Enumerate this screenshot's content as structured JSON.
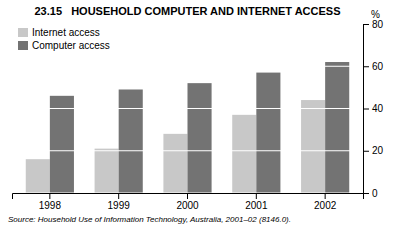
{
  "chart_data": {
    "type": "bar",
    "title": "23.15   HOUSEHOLD COMPUTER AND INTERNET ACCESS",
    "categories": [
      "1998",
      "1999",
      "2000",
      "2001",
      "2002"
    ],
    "series": [
      {
        "name": "Internet access",
        "color": "#c8c8c8",
        "values": [
          16,
          21,
          28,
          37,
          44
        ]
      },
      {
        "name": "Computer access",
        "color": "#737373",
        "values": [
          46,
          49,
          52,
          57,
          62
        ]
      }
    ],
    "ylim": [
      0,
      80
    ],
    "yticks": [
      0,
      20,
      40,
      60,
      80
    ],
    "ylabel": "%",
    "source": "Source: Household Use of Information Technology, Australia, 2001–02 (8146.0).",
    "grid": true,
    "legend": "upper left"
  }
}
